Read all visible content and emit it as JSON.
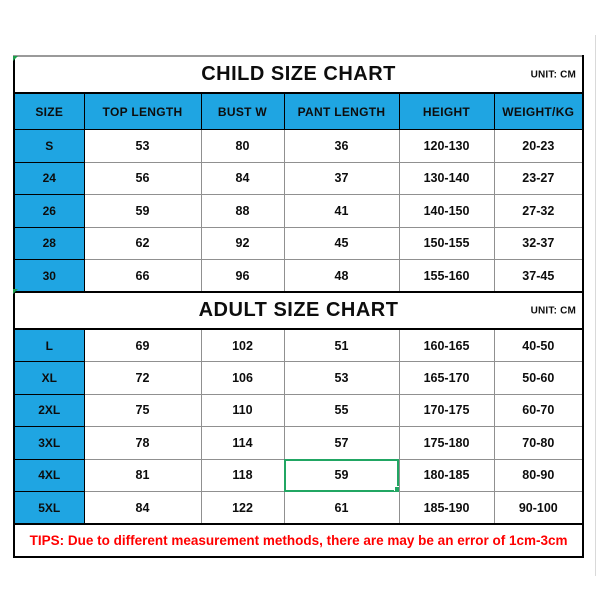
{
  "colors": {
    "header_blue": "#1fa5e2",
    "selection_green": "#21a663",
    "tips_red": "#ff0000"
  },
  "child_chart": {
    "title": "CHILD SIZE CHART",
    "unit": "UNIT: CM",
    "columns": [
      "SIZE",
      "TOP LENGTH",
      "BUST W",
      "PANT LENGTH",
      "HEIGHT",
      "WEIGHT/KG"
    ],
    "rows": [
      [
        "S",
        "53",
        "80",
        "36",
        "120-130",
        "20-23"
      ],
      [
        "24",
        "56",
        "84",
        "37",
        "130-140",
        "23-27"
      ],
      [
        "26",
        "59",
        "88",
        "41",
        "140-150",
        "27-32"
      ],
      [
        "28",
        "62",
        "92",
        "45",
        "150-155",
        "32-37"
      ],
      [
        "30",
        "66",
        "96",
        "48",
        "155-160",
        "37-45"
      ]
    ]
  },
  "adult_chart": {
    "title": "ADULT SIZE CHART",
    "unit": "UNIT: CM",
    "rows": [
      [
        "L",
        "69",
        "102",
        "51",
        "160-165",
        "40-50"
      ],
      [
        "XL",
        "72",
        "106",
        "53",
        "165-170",
        "50-60"
      ],
      [
        "2XL",
        "75",
        "110",
        "55",
        "170-175",
        "60-70"
      ],
      [
        "3XL",
        "78",
        "114",
        "57",
        "175-180",
        "70-80"
      ],
      [
        "4XL",
        "81",
        "118",
        "59",
        "180-185",
        "80-90"
      ],
      [
        "5XL",
        "84",
        "122",
        "61",
        "185-190",
        "90-100"
      ]
    ],
    "selected": {
      "row_index": 4,
      "col_index": 3,
      "value": "59"
    }
  },
  "tips": "TIPS: Due to different measurement methods, there are may be an error of 1cm-3cm"
}
